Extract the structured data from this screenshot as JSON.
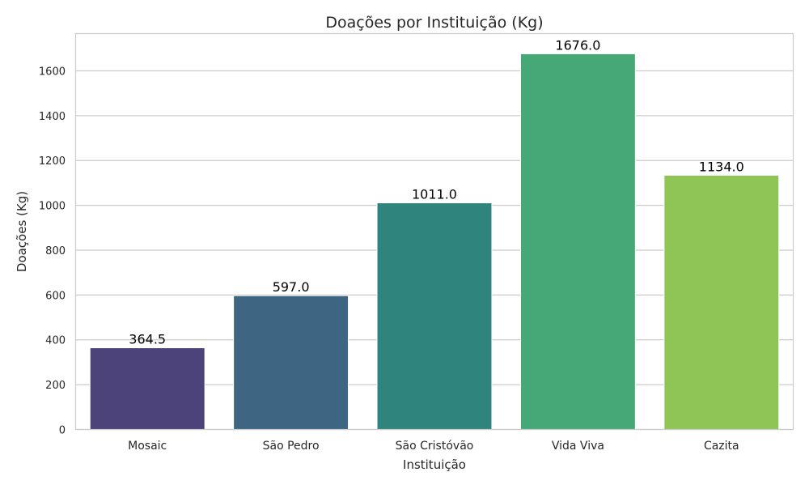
{
  "chart_data": {
    "type": "bar",
    "title": "Doações por Instituição (Kg)",
    "xlabel": "Instituição",
    "ylabel": "Doações (Kg)",
    "categories": [
      "Mosaic",
      "São Pedro",
      "São Cristóvão",
      "Vida Viva",
      "Cazita"
    ],
    "values": [
      364.5,
      597.0,
      1011.0,
      1676.0,
      1134.0
    ],
    "value_labels": [
      "364.5",
      "597.0",
      "1011.0",
      "1676.0",
      "1134.0"
    ],
    "colors": [
      "#4b4379",
      "#3e6683",
      "#2f857e",
      "#47a877",
      "#8ec556"
    ],
    "ylim": [
      0,
      1766
    ],
    "yticks": [
      0,
      200,
      400,
      600,
      800,
      1000,
      1200,
      1400,
      1600
    ],
    "grid": true,
    "legend": "none"
  }
}
